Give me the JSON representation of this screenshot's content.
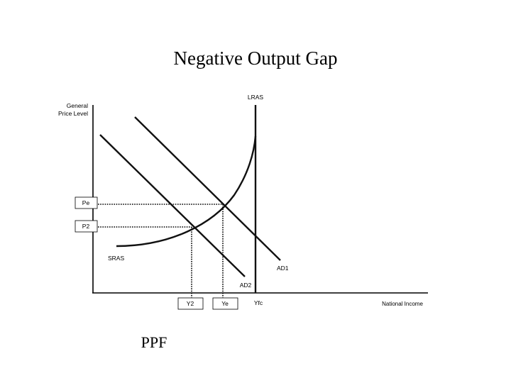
{
  "diagram": {
    "title": "Negative Output Gap",
    "y_axis_label_line1": "General",
    "y_axis_label_line2": "Price Level",
    "x_axis_label": "National Income",
    "curves": {
      "lras": "LRAS",
      "sras": "SRAS",
      "ad1": "AD1",
      "ad2": "AD2"
    },
    "price_levels": {
      "pe": "Pe",
      "p2": "P2"
    },
    "output_levels": {
      "y2": "Y2",
      "ye": "Ye",
      "yfc": "Yfc"
    },
    "caption": "PPF"
  }
}
